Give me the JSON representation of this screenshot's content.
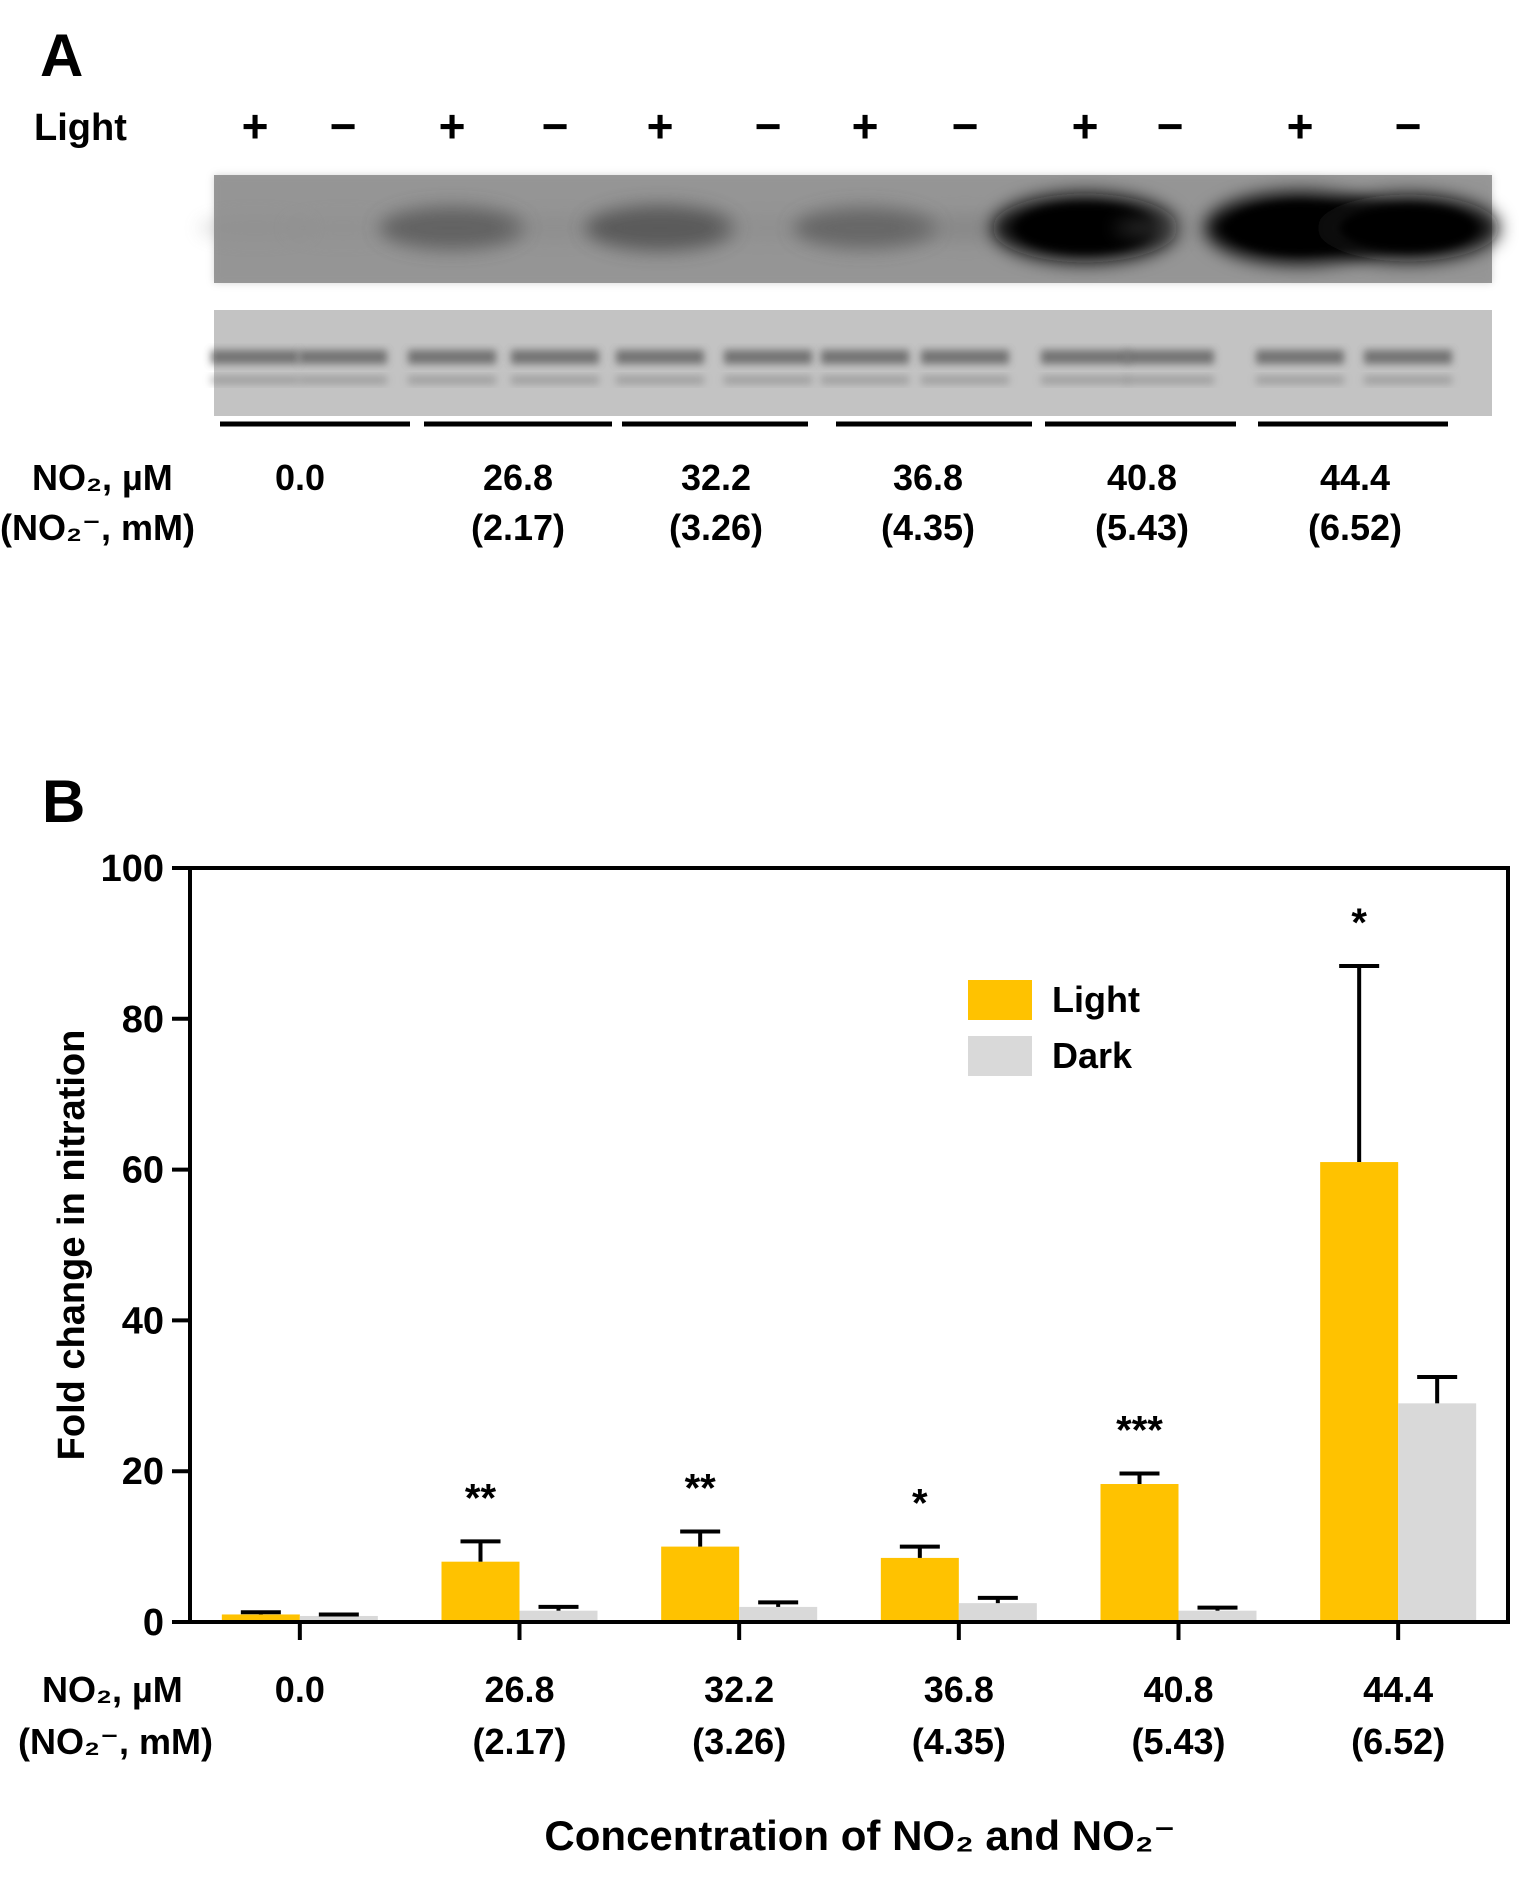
{
  "panel_a": {
    "label": "A",
    "row_label": "Light",
    "lane_signs": [
      "+",
      "−",
      "+",
      "−",
      "+",
      "−",
      "+",
      "−",
      "+",
      "−",
      "+",
      "−"
    ],
    "blot_intensity": [
      0.03,
      0.02,
      0.45,
      0.08,
      0.5,
      0.06,
      0.42,
      0.15,
      0.95,
      0.04,
      1.0,
      0.9
    ],
    "concentration_label_1": "NO₂, µM",
    "concentration_label_2": "(NO₂⁻, mM)",
    "groups": [
      {
        "no2": "0.0",
        "nitrite": ""
      },
      {
        "no2": "26.8",
        "nitrite": "(2.17)"
      },
      {
        "no2": "32.2",
        "nitrite": "(3.26)"
      },
      {
        "no2": "36.8",
        "nitrite": "(4.35)"
      },
      {
        "no2": "40.8",
        "nitrite": "(5.43)"
      },
      {
        "no2": "44.4",
        "nitrite": "(6.52)"
      }
    ]
  },
  "chart_data": {
    "type": "bar",
    "panel_label": "B",
    "title": "",
    "ylabel": "Fold change in nitration",
    "xlabel": "Concentration of NO₂ and NO₂⁻",
    "x_row_label_1": "NO₂, µM",
    "x_row_label_2": "(NO₂⁻, mM)",
    "categories": [
      "0.0",
      "26.8",
      "32.2",
      "36.8",
      "40.8",
      "44.4"
    ],
    "categories_secondary": [
      "",
      "(2.17)",
      "(3.26)",
      "(4.35)",
      "(5.43)",
      "(6.52)"
    ],
    "ylim": [
      0,
      100
    ],
    "yticks": [
      "0",
      "20",
      "40",
      "60",
      "80",
      "100"
    ],
    "legend_position": "top-right",
    "grid": false,
    "series": [
      {
        "name": "Light",
        "color": "#FFC200",
        "values": [
          1.0,
          8.0,
          10.0,
          8.5,
          18.3,
          61.0
        ],
        "errors": [
          0.3,
          2.7,
          2.0,
          1.5,
          1.4,
          26.0
        ]
      },
      {
        "name": "Dark",
        "color": "#D9D9D9",
        "values": [
          0.8,
          1.5,
          2.0,
          2.5,
          1.5,
          29.0
        ],
        "errors": [
          0.2,
          0.5,
          0.6,
          0.7,
          0.4,
          3.5
        ]
      }
    ],
    "significance": [
      "",
      "**",
      "**",
      "*",
      "***",
      "*"
    ]
  }
}
